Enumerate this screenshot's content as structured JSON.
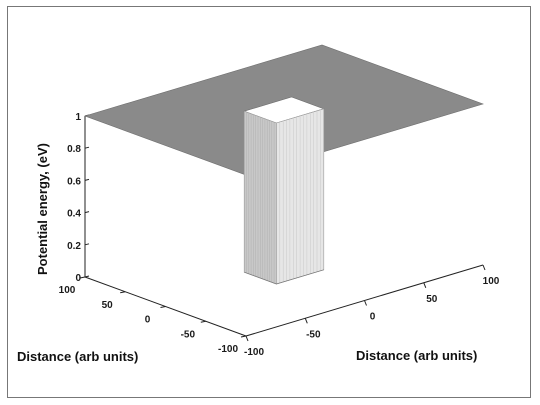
{
  "chart_data": {
    "type": "surface3d",
    "title": "",
    "zlabel": "Potential energy, (eV)",
    "xlabel": "Distance (arb units)",
    "ylabel": "Distance (arb units)",
    "xlim": [
      -100,
      100
    ],
    "ylim": [
      -100,
      100
    ],
    "zlim": [
      0,
      1
    ],
    "x_ticks": [
      -100,
      -50,
      0,
      50,
      100
    ],
    "y_ticks": [
      -100,
      -50,
      0,
      50,
      100
    ],
    "z_ticks": [
      0,
      0.2,
      0.4,
      0.6,
      0.8,
      1
    ],
    "surface": {
      "plateau_value": 1,
      "well_value": 0,
      "well_x": [
        -20,
        20
      ],
      "well_y": [
        -20,
        20
      ]
    },
    "colors": {
      "surface": "#8a8a8a",
      "well_wall_light": "#e6e6e6",
      "well_wall_dark": "#c8c8c8"
    }
  }
}
